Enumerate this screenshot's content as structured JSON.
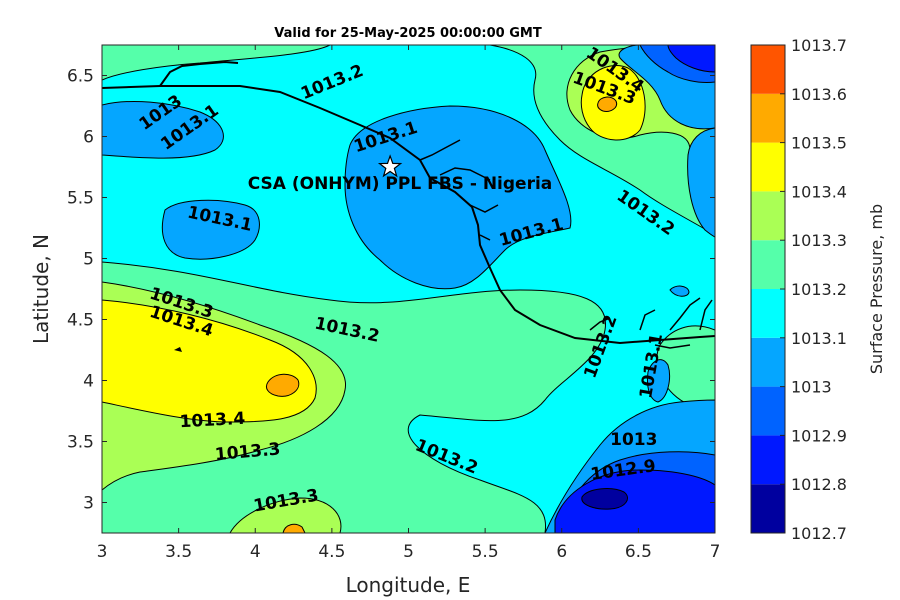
{
  "chart_data": {
    "type": "contour",
    "title": "Valid for 25-May-2025 00:00:00 GMT",
    "xlabel": "Longitude, E",
    "ylabel": "Latitude, N",
    "xlim": [
      3,
      7
    ],
    "ylim": [
      2.75,
      6.75
    ],
    "xticks": [
      "3",
      "3.5",
      "4",
      "4.5",
      "5",
      "5.5",
      "6",
      "6.5",
      "7"
    ],
    "yticks": [
      "3",
      "3.5",
      "4",
      "4.5",
      "5",
      "5.5",
      "6",
      "6.5"
    ],
    "colorbar": {
      "label": "Surface Pressure, mb",
      "levels": [
        1012.7,
        1012.8,
        1012.9,
        1013.0,
        1013.1,
        1013.2,
        1013.3,
        1013.4,
        1013.5,
        1013.6,
        1013.7
      ],
      "ticks": [
        "1012.7",
        "1012.8",
        "1012.9",
        "1013",
        "1013.1",
        "1013.2",
        "1013.3",
        "1013.4",
        "1013.5",
        "1013.6",
        "1013.7"
      ],
      "colors": [
        "#00009f",
        "#0018ff",
        "#0063ff",
        "#05a6ff",
        "#00ffff",
        "#55ffaa",
        "#aaff55",
        "#ffff00",
        "#ffaa00",
        "#ff5500",
        "#ff0000"
      ]
    },
    "site": {
      "label": "CSA (ONHYM) PPL FBS - Nigeria",
      "lon": 4.88,
      "lat": 5.75
    },
    "contour_labels": [
      {
        "text": "1013.2",
        "lon": 4.5,
        "lat": 6.45,
        "rot": -22
      },
      {
        "text": "1013",
        "lon": 3.38,
        "lat": 6.2,
        "rot": -35
      },
      {
        "text": "1013.1",
        "lon": 3.57,
        "lat": 6.08,
        "rot": -35
      },
      {
        "text": "1013.1",
        "lon": 4.85,
        "lat": 6.0,
        "rot": -18
      },
      {
        "text": "1013.4",
        "lon": 6.35,
        "lat": 6.55,
        "rot": 35
      },
      {
        "text": "1013.3",
        "lon": 6.28,
        "lat": 6.4,
        "rot": 20
      },
      {
        "text": "1013.1",
        "lon": 3.77,
        "lat": 5.33,
        "rot": 12
      },
      {
        "text": "1013.1",
        "lon": 5.8,
        "lat": 5.22,
        "rot": -15
      },
      {
        "text": "1013.2",
        "lon": 6.55,
        "lat": 5.38,
        "rot": 35
      },
      {
        "text": "1013.3",
        "lon": 3.52,
        "lat": 4.64,
        "rot": 18
      },
      {
        "text": "1013.4",
        "lon": 3.52,
        "lat": 4.49,
        "rot": 18
      },
      {
        "text": "1013.2",
        "lon": 4.6,
        "lat": 4.42,
        "rot": 12
      },
      {
        "text": "1013.2",
        "lon": 6.25,
        "lat": 4.28,
        "rot": -70
      },
      {
        "text": "1013.1",
        "lon": 6.58,
        "lat": 4.12,
        "rot": -80
      },
      {
        "text": "1013.4",
        "lon": 3.72,
        "lat": 3.68,
        "rot": -3
      },
      {
        "text": "1013.3",
        "lon": 3.95,
        "lat": 3.42,
        "rot": -5
      },
      {
        "text": "1013.2",
        "lon": 5.25,
        "lat": 3.38,
        "rot": 22
      },
      {
        "text": "1013",
        "lon": 6.47,
        "lat": 3.52,
        "rot": 0
      },
      {
        "text": "1012.9",
        "lon": 6.4,
        "lat": 3.27,
        "rot": -8
      },
      {
        "text": "1013.3",
        "lon": 4.2,
        "lat": 3.02,
        "rot": -10
      }
    ]
  }
}
